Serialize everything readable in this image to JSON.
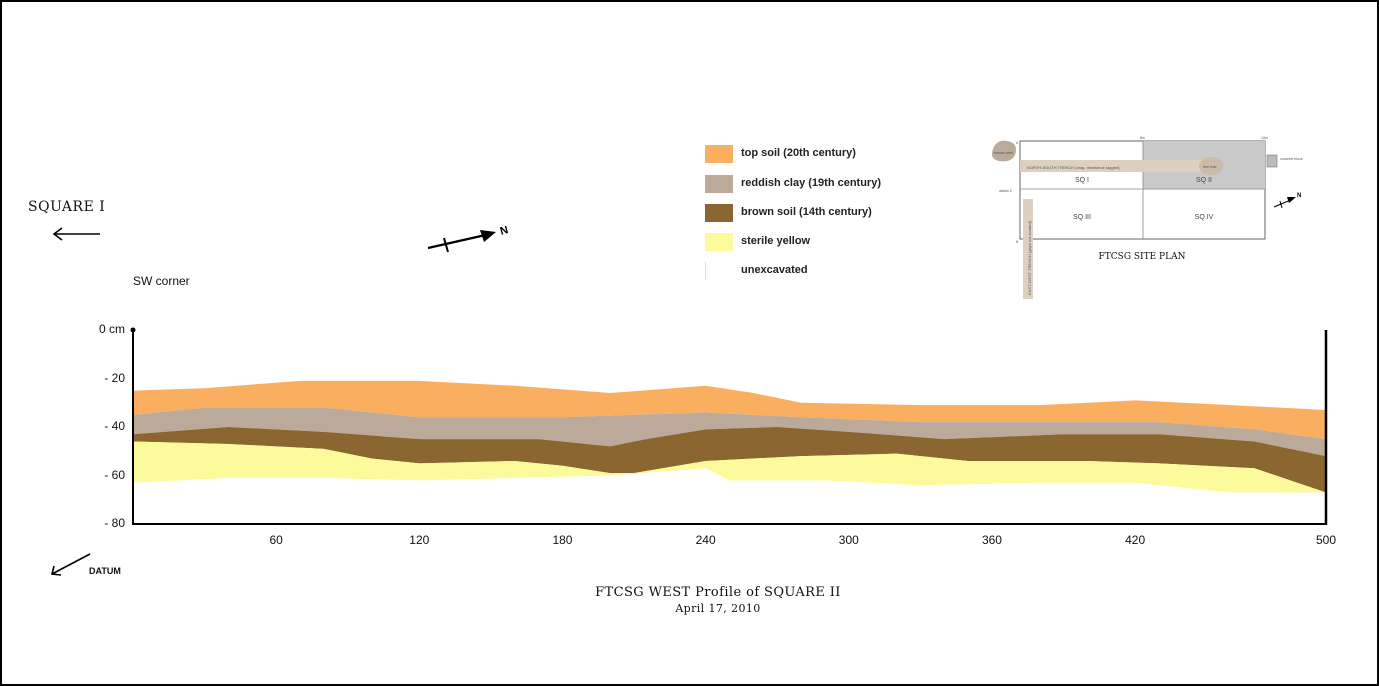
{
  "square_label": "SQUARE I",
  "corner_label": "SW corner",
  "datum_label": "DATUM",
  "north_label": "N",
  "legend": [
    {
      "label": "top soil (20th century)",
      "color": "#f9ae60"
    },
    {
      "label": "reddish clay (19th century)",
      "color": "#bba99a"
    },
    {
      "label": "brown soil (14th century)",
      "color": "#8b6631"
    },
    {
      "label": "sterile yellow",
      "color": "#fbfb9b"
    },
    {
      "label": "unexcavated",
      "color": "#ffffff"
    }
  ],
  "site_plan": {
    "title": "FTCSG SITE PLAN",
    "squares": [
      "SQ I",
      "SQ II",
      "SQ III",
      "SQ IV"
    ],
    "trench_ns": "NORTH-SOUTH TRENCH (mag. resistance tagged)",
    "trench_ew": "EAST-WEST TRENCH (gaps not located)",
    "burned_area": "burned area",
    "tree_label": "tree hole",
    "datum_label": "datum 0",
    "concrete_label": "concrete block",
    "tick_top_mid": "5m",
    "tick_top_right": "10m",
    "corner_a": "A",
    "corner_b": "B"
  },
  "title_line1": "FTCSG WEST Profile of SQUARE II",
  "title_line2": "April 17, 2010",
  "chart_data": {
    "type": "area",
    "title": "FTCSG WEST Profile of SQUARE II",
    "subtitle": "April 17, 2010",
    "xlim": [
      0,
      500
    ],
    "ylim": [
      -80,
      0
    ],
    "x_ticks": [
      60,
      120,
      180,
      240,
      300,
      360,
      420,
      500
    ],
    "y_ticks": [
      "0 cm",
      "- 20",
      "- 40",
      "- 60",
      "- 80"
    ],
    "y_tick_values": [
      0,
      -20,
      -40,
      -60,
      -80
    ],
    "series": [
      {
        "name": "top soil (20th century)",
        "color": "#f9ae60",
        "top": [
          [
            0,
            -25
          ],
          [
            30,
            -24
          ],
          [
            70,
            -21
          ],
          [
            120,
            -21
          ],
          [
            160,
            -23
          ],
          [
            200,
            -26
          ],
          [
            240,
            -23
          ],
          [
            260,
            -26
          ],
          [
            280,
            -30
          ],
          [
            330,
            -31
          ],
          [
            380,
            -31
          ],
          [
            420,
            -29
          ],
          [
            460,
            -31
          ],
          [
            500,
            -33
          ]
        ],
        "bottom": [
          [
            0,
            -35
          ],
          [
            30,
            -32
          ],
          [
            80,
            -32
          ],
          [
            120,
            -36
          ],
          [
            180,
            -36
          ],
          [
            240,
            -34
          ],
          [
            280,
            -36
          ],
          [
            330,
            -38
          ],
          [
            380,
            -38
          ],
          [
            430,
            -38
          ],
          [
            470,
            -41
          ],
          [
            500,
            -45
          ]
        ]
      },
      {
        "name": "reddish clay (19th century)",
        "color": "#bba99a",
        "top": [
          [
            0,
            -35
          ],
          [
            30,
            -32
          ],
          [
            80,
            -32
          ],
          [
            120,
            -36
          ],
          [
            180,
            -36
          ],
          [
            240,
            -34
          ],
          [
            280,
            -36
          ],
          [
            330,
            -38
          ],
          [
            380,
            -38
          ],
          [
            430,
            -38
          ],
          [
            470,
            -41
          ],
          [
            500,
            -45
          ]
        ],
        "bottom": [
          [
            0,
            -43
          ],
          [
            40,
            -40
          ],
          [
            80,
            -42
          ],
          [
            120,
            -45
          ],
          [
            170,
            -45
          ],
          [
            200,
            -48
          ],
          [
            215,
            -45
          ],
          [
            240,
            -41
          ],
          [
            270,
            -40
          ],
          [
            300,
            -42
          ],
          [
            340,
            -45
          ],
          [
            390,
            -43
          ],
          [
            430,
            -43
          ],
          [
            470,
            -46
          ],
          [
            500,
            -52
          ]
        ]
      },
      {
        "name": "brown soil (14th century)",
        "color": "#8b6631",
        "top": [
          [
            0,
            -43
          ],
          [
            40,
            -40
          ],
          [
            80,
            -42
          ],
          [
            120,
            -45
          ],
          [
            170,
            -45
          ],
          [
            200,
            -48
          ],
          [
            215,
            -45
          ],
          [
            240,
            -41
          ],
          [
            270,
            -40
          ],
          [
            300,
            -42
          ],
          [
            340,
            -45
          ],
          [
            390,
            -43
          ],
          [
            430,
            -43
          ],
          [
            470,
            -46
          ],
          [
            500,
            -52
          ]
        ],
        "bottom": [
          [
            0,
            -46
          ],
          [
            40,
            -47
          ],
          [
            80,
            -49
          ],
          [
            100,
            -53
          ],
          [
            120,
            -55
          ],
          [
            160,
            -54
          ],
          [
            180,
            -56
          ],
          [
            200,
            -59
          ],
          [
            210,
            -59
          ],
          [
            240,
            -54
          ],
          [
            280,
            -52
          ],
          [
            320,
            -51
          ],
          [
            350,
            -54
          ],
          [
            400,
            -54
          ],
          [
            430,
            -55
          ],
          [
            470,
            -57
          ],
          [
            500,
            -67
          ]
        ]
      },
      {
        "name": "sterile yellow",
        "color": "#fbfb9b",
        "top": [
          [
            0,
            -46
          ],
          [
            40,
            -47
          ],
          [
            80,
            -49
          ],
          [
            100,
            -53
          ],
          [
            120,
            -55
          ],
          [
            160,
            -54
          ],
          [
            180,
            -56
          ],
          [
            200,
            -59
          ],
          [
            210,
            -59
          ],
          [
            240,
            -54
          ],
          [
            280,
            -52
          ],
          [
            320,
            -51
          ],
          [
            350,
            -54
          ],
          [
            400,
            -54
          ],
          [
            430,
            -55
          ],
          [
            470,
            -57
          ],
          [
            500,
            -67
          ]
        ],
        "bottom": [
          [
            0,
            -63
          ],
          [
            40,
            -61
          ],
          [
            80,
            -61
          ],
          [
            120,
            -62
          ],
          [
            160,
            -61
          ],
          [
            200,
            -60
          ],
          [
            240,
            -57
          ],
          [
            250,
            -62
          ],
          [
            290,
            -62
          ],
          [
            330,
            -64
          ],
          [
            380,
            -63
          ],
          [
            420,
            -63
          ],
          [
            460,
            -67
          ],
          [
            500,
            -67
          ]
        ]
      }
    ]
  }
}
